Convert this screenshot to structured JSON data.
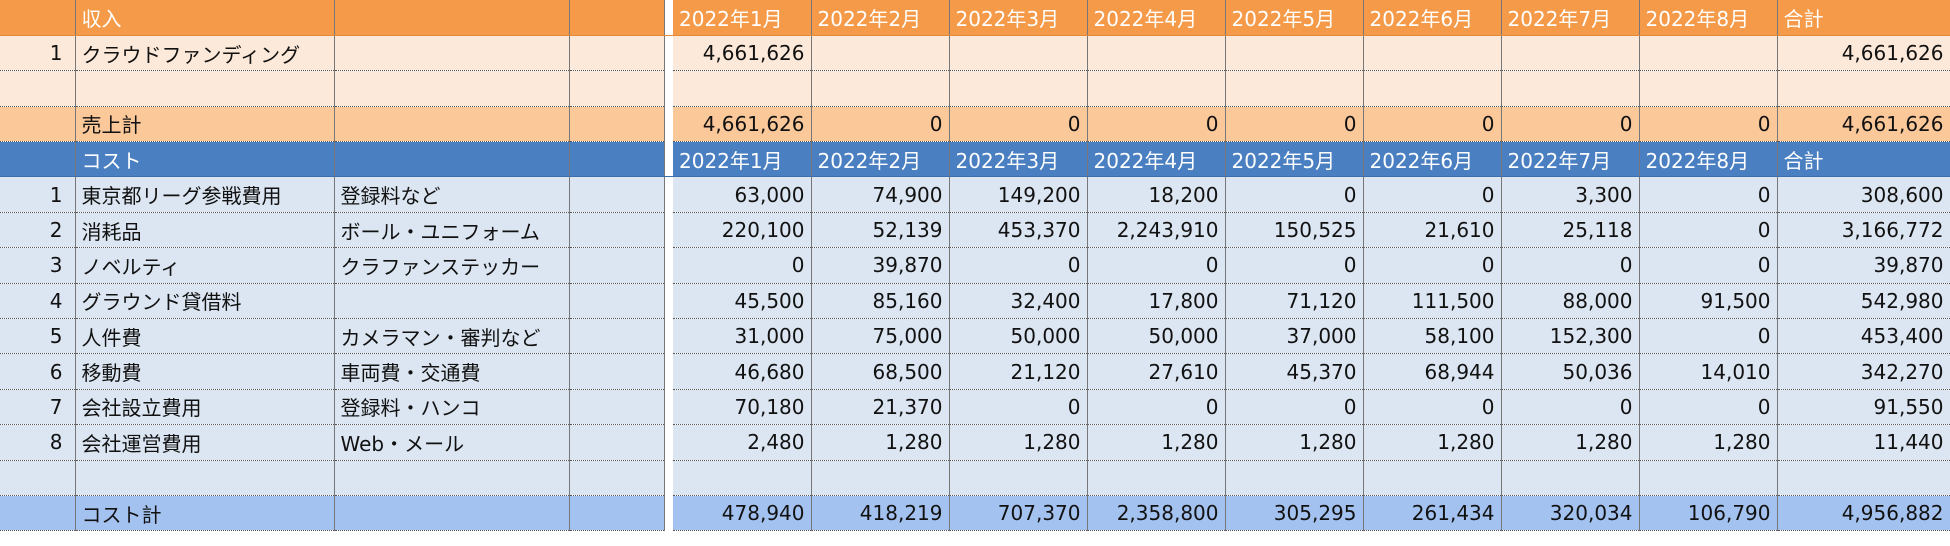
{
  "income": {
    "header": {
      "label": "収入",
      "months": [
        "2022年1月",
        "2022年2月",
        "2022年3月",
        "2022年4月",
        "2022年5月",
        "2022年6月",
        "2022年7月",
        "2022年8月"
      ],
      "total_label": "合計"
    },
    "rows": [
      {
        "no": "1",
        "name": "クラウドファンディング",
        "note": null,
        "values": [
          "4,661,626",
          null,
          null,
          null,
          null,
          null,
          null,
          null
        ],
        "total": "4,661,626"
      }
    ],
    "subtotal": {
      "label": "売上計",
      "values": [
        "4,661,626",
        "0",
        "0",
        "0",
        "0",
        "0",
        "0",
        "0"
      ],
      "total": "4,661,626"
    }
  },
  "cost": {
    "header": {
      "label": "コスト",
      "months": [
        "2022年1月",
        "2022年2月",
        "2022年3月",
        "2022年4月",
        "2022年5月",
        "2022年6月",
        "2022年7月",
        "2022年8月"
      ],
      "total_label": "合計"
    },
    "rows": [
      {
        "no": "1",
        "name": "東京都リーグ参戦費用",
        "note": "登録料など",
        "values": [
          "63,000",
          "74,900",
          "149,200",
          "18,200",
          "0",
          "0",
          "3,300",
          "0"
        ],
        "total": "308,600"
      },
      {
        "no": "2",
        "name": "消耗品",
        "note": "ボール・ユニフォーム",
        "values": [
          "220,100",
          "52,139",
          "453,370",
          "2,243,910",
          "150,525",
          "21,610",
          "25,118",
          "0"
        ],
        "total": "3,166,772"
      },
      {
        "no": "3",
        "name": "ノベルティ",
        "note": "クラファンステッカー",
        "values": [
          "0",
          "39,870",
          "0",
          "0",
          "0",
          "0",
          "0",
          "0"
        ],
        "total": "39,870"
      },
      {
        "no": "4",
        "name": "グラウンド貸借料",
        "note": null,
        "values": [
          "45,500",
          "85,160",
          "32,400",
          "17,800",
          "71,120",
          "111,500",
          "88,000",
          "91,500"
        ],
        "total": "542,980"
      },
      {
        "no": "5",
        "name": "人件費",
        "note": "カメラマン・審判など",
        "values": [
          "31,000",
          "75,000",
          "50,000",
          "50,000",
          "37,000",
          "58,100",
          "152,300",
          "0"
        ],
        "total": "453,400"
      },
      {
        "no": "6",
        "name": "移動費",
        "note": "車両費・交通費",
        "values": [
          "46,680",
          "68,500",
          "21,120",
          "27,610",
          "45,370",
          "68,944",
          "50,036",
          "14,010"
        ],
        "total": "342,270"
      },
      {
        "no": "7",
        "name": "会社設立費用",
        "note": "登録料・ハンコ",
        "values": [
          "70,180",
          "21,370",
          "0",
          "0",
          "0",
          "0",
          "0",
          "0"
        ],
        "total": "91,550"
      },
      {
        "no": "8",
        "name": "会社運営費用",
        "note": "Web・メール",
        "values": [
          "2,480",
          "1,280",
          "1,280",
          "1,280",
          "1,280",
          "1,280",
          "1,280",
          "1,280"
        ],
        "total": "11,440"
      }
    ],
    "subtotal": {
      "label": "コスト計",
      "values": [
        "478,940",
        "418,219",
        "707,370",
        "2,358,800",
        "305,295",
        "261,434",
        "320,034",
        "106,790"
      ],
      "total": "4,956,882"
    }
  }
}
